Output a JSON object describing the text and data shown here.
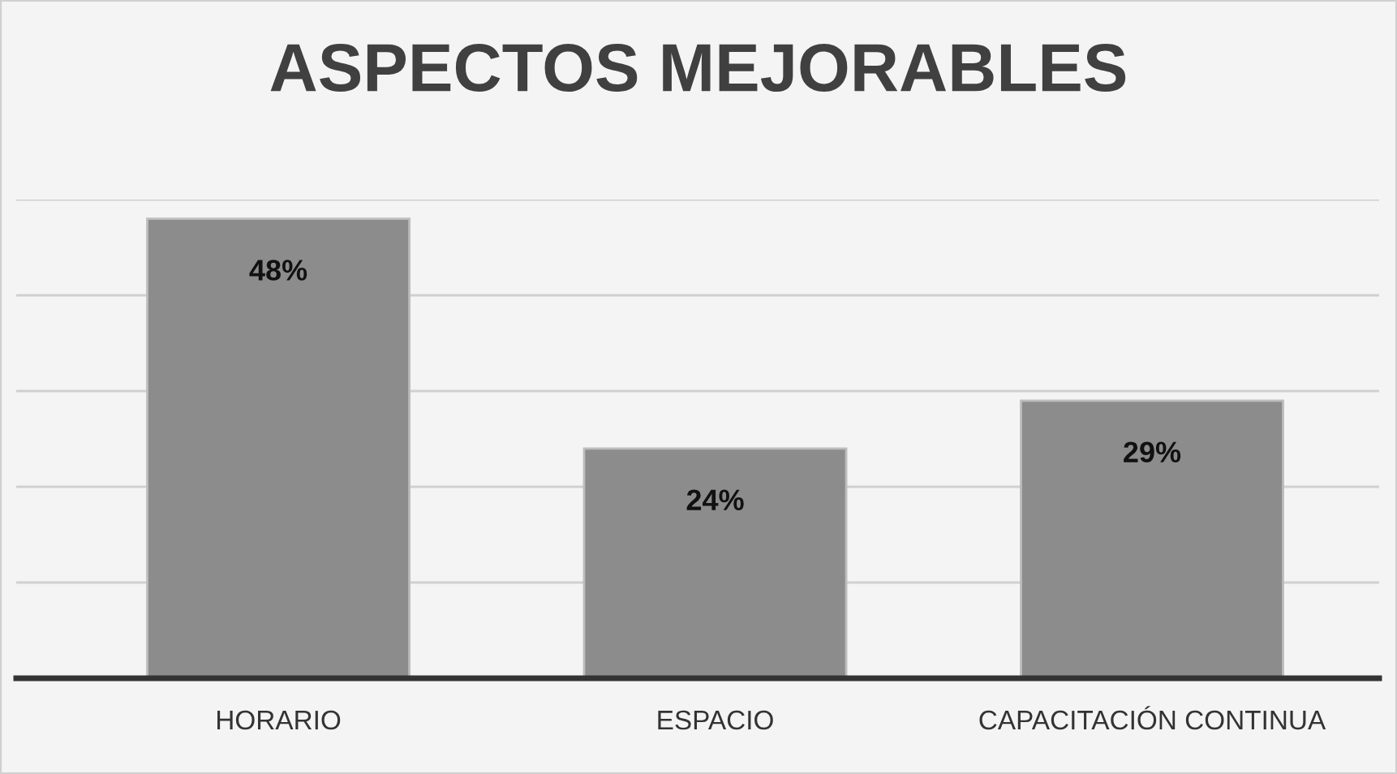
{
  "chart_data": {
    "type": "bar",
    "title": "ASPECTOS MEJORABLES",
    "categories": [
      "HORARIO",
      "ESPACIO",
      "CAPACITACIÓN CONTINUA"
    ],
    "values": [
      48,
      24,
      29
    ],
    "value_labels": [
      "48%",
      "24%",
      "29%"
    ],
    "color": "#8c8c8c",
    "ylim": [
      0,
      50
    ],
    "yticks": [
      {
        "value": 0,
        "label": null
      },
      {
        "value": 10,
        "label": null
      },
      {
        "value": 20,
        "label": null
      },
      {
        "value": 30,
        "label": null
      },
      {
        "value": 40,
        "label": null
      },
      {
        "value": 50,
        "label": null
      }
    ],
    "tick_labels": "x",
    "grid": "y",
    "legend": false
  }
}
